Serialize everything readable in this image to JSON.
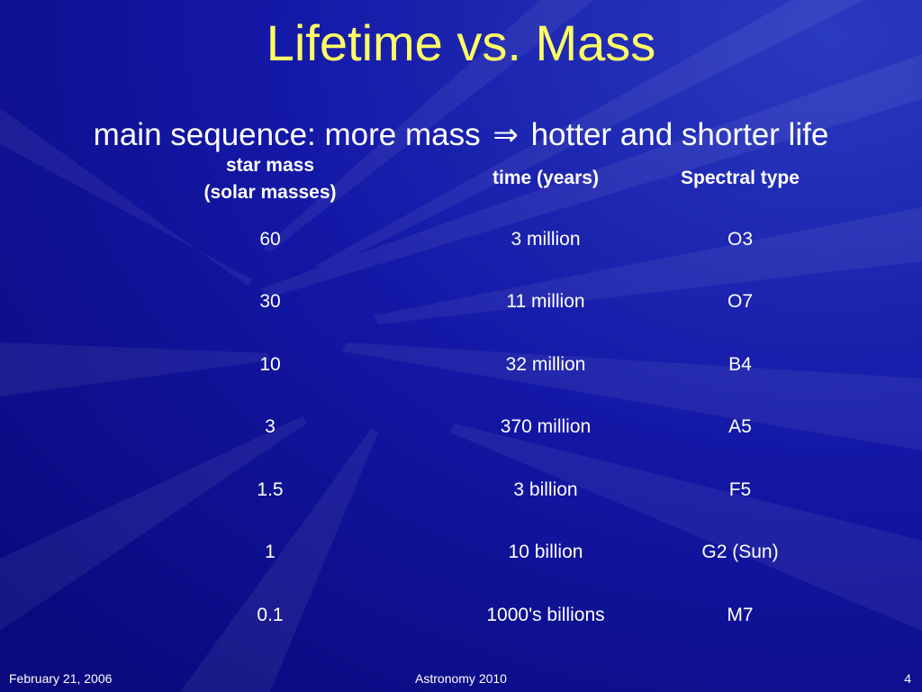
{
  "slide": {
    "title": "Lifetime vs. Mass",
    "subtitle_before": "main sequence: more mass",
    "subtitle_arrow": "⇒",
    "subtitle_after": "hotter and shorter life"
  },
  "table": {
    "headers": {
      "mass_line1": "star mass",
      "mass_line2": "(solar masses)",
      "time": "time (years)",
      "type": "Spectral type"
    },
    "rows": [
      {
        "mass": "60",
        "time": "3 million",
        "type": "O3"
      },
      {
        "mass": "30",
        "time": "11 million",
        "type": "O7"
      },
      {
        "mass": "10",
        "time": "32 million",
        "type": "B4"
      },
      {
        "mass": "3",
        "time": "370 million",
        "type": "A5"
      },
      {
        "mass": "1.5",
        "time": "3 billion",
        "type": "F5"
      },
      {
        "mass": "1",
        "time": "10 billion",
        "type": "G2 (Sun)"
      },
      {
        "mass": "0.1",
        "time": "1000's billions",
        "type": "M7"
      }
    ]
  },
  "footer": {
    "date": "February 21, 2006",
    "course": "Astronomy 2010",
    "page": "4"
  },
  "colors": {
    "background": "#0d0c8c",
    "title": "#ffff66",
    "text": "#ffffff"
  }
}
